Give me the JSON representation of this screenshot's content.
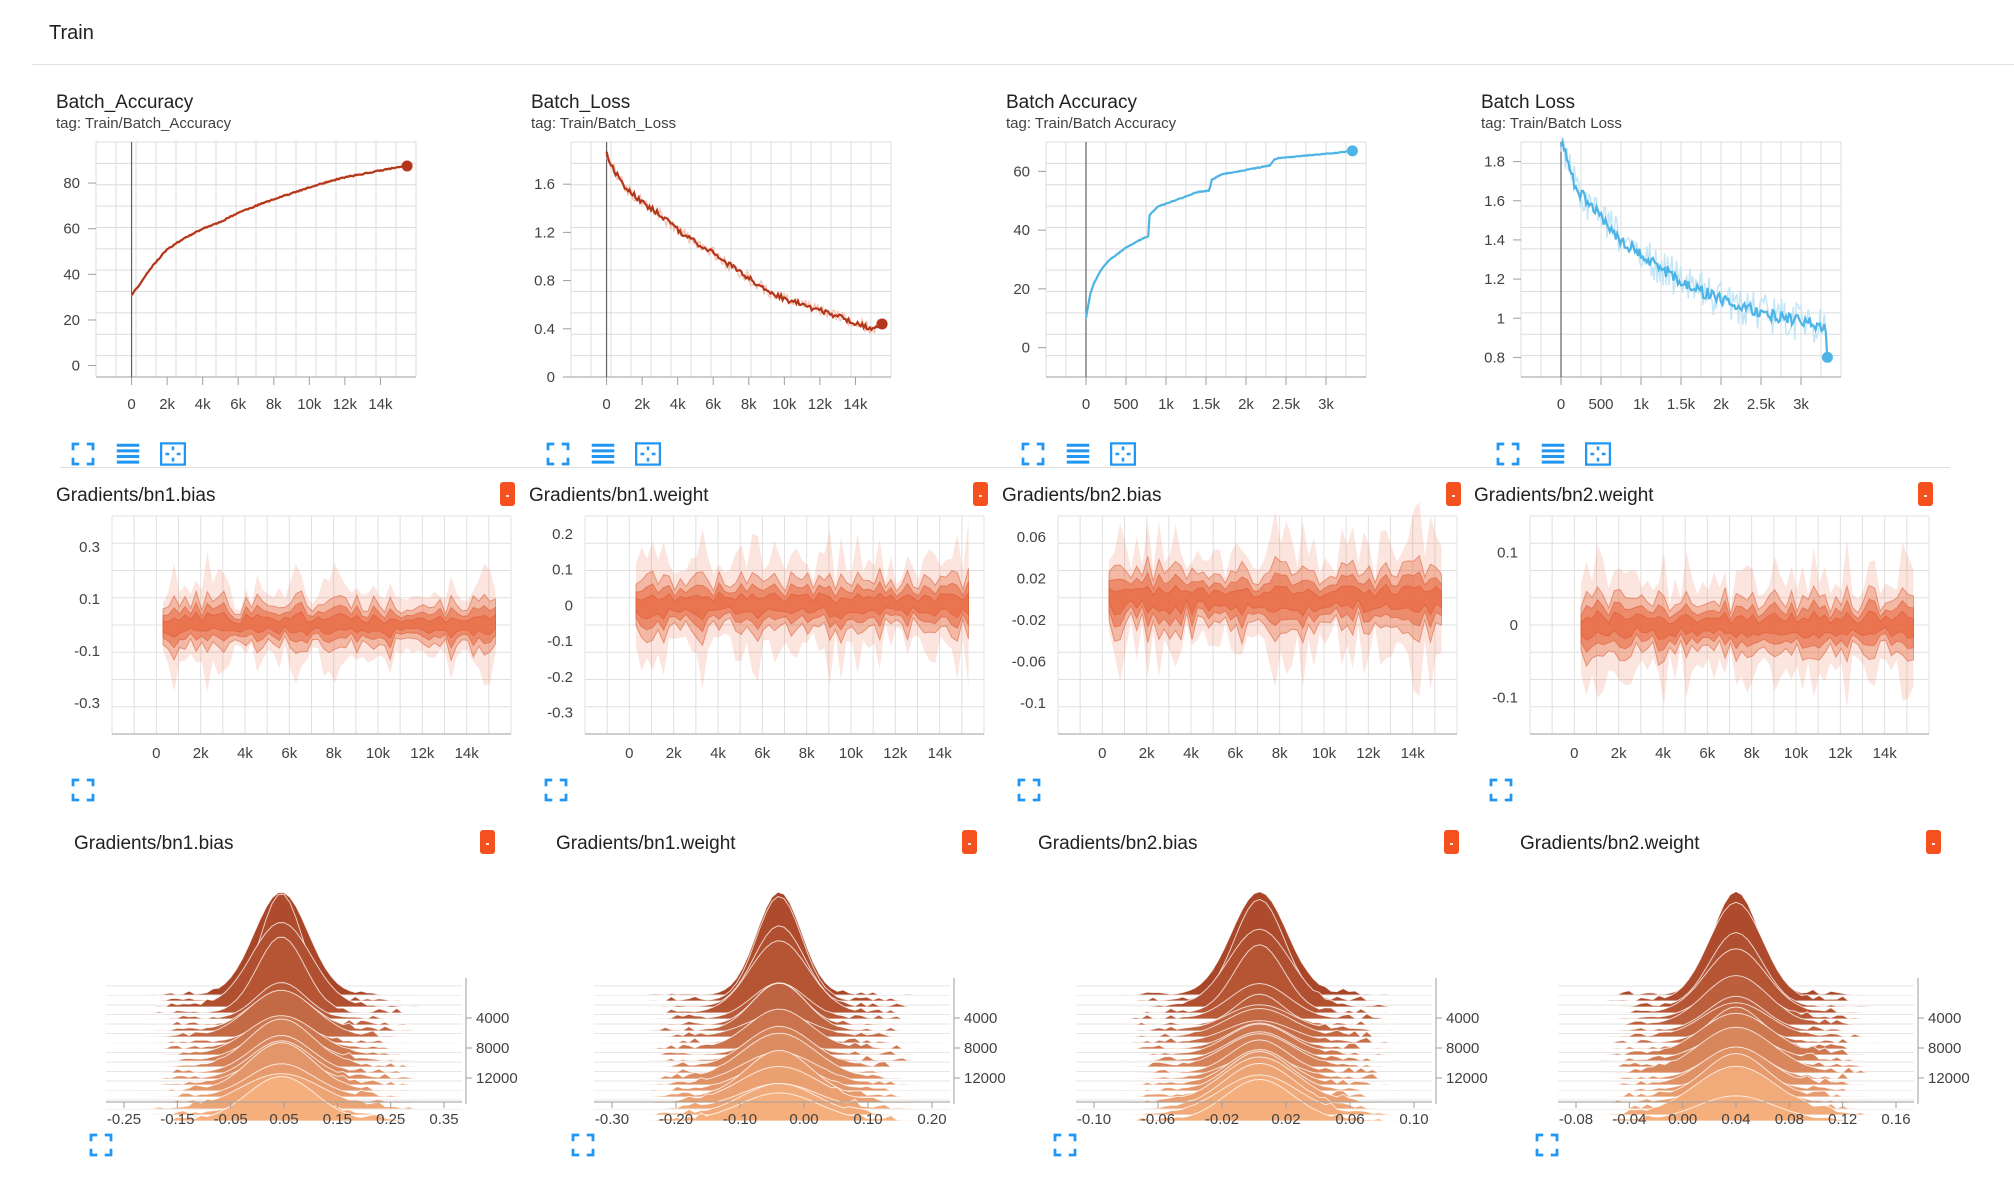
{
  "header": {
    "title": "Train"
  },
  "colors": {
    "red": "#b5371b",
    "red_light": "#f3c2b1",
    "blue": "#4db4e5",
    "blue_light": "#bfe3f5",
    "orange": "#e8704a",
    "icon_blue": "#2196f3"
  },
  "icons": {
    "expand": "fullscreen-icon",
    "legend": "list-icon",
    "fit": "fit-domain-icon",
    "badge": "colored-label-badge"
  },
  "scalars": [
    {
      "title": "Batch_Accuracy",
      "tag": "tag: Train/Batch_Accuracy",
      "chart_data": {
        "type": "line",
        "title": "Batch_Accuracy",
        "color": "red",
        "noise": 0.6,
        "xlim": [
          -2000,
          16000
        ],
        "ylim": [
          -5,
          98
        ],
        "x_ticks": [
          0,
          2000,
          4000,
          6000,
          8000,
          10000,
          12000,
          14000
        ],
        "x_tick_labels": [
          "0",
          "2k",
          "4k",
          "6k",
          "8k",
          "10k",
          "12k",
          "14k"
        ],
        "y_ticks": [
          0,
          20,
          40,
          60,
          80
        ],
        "y_tick_labels": [
          "0",
          "20",
          "40",
          "60",
          "80"
        ],
        "x": [
          0,
          500,
          1000,
          2000,
          3000,
          4000,
          5000,
          6000,
          7000,
          8000,
          9000,
          10000,
          11000,
          12000,
          13000,
          14000,
          15000,
          15500
        ],
        "y": [
          31,
          36,
          42,
          51,
          56,
          60,
          63,
          67,
          70,
          73,
          75.5,
          78,
          80.5,
          82.5,
          84,
          85.5,
          87,
          87.5
        ]
      }
    },
    {
      "title": "Batch_Loss",
      "tag": "tag: Train/Batch_Loss",
      "chart_data": {
        "type": "line",
        "title": "Batch_Loss",
        "color": "red",
        "noise": 0.05,
        "xlim": [
          -2000,
          16000
        ],
        "ylim": [
          0,
          1.95
        ],
        "x_ticks": [
          0,
          2000,
          4000,
          6000,
          8000,
          10000,
          12000,
          14000
        ],
        "x_tick_labels": [
          "0",
          "2k",
          "4k",
          "6k",
          "8k",
          "10k",
          "12k",
          "14k"
        ],
        "y_ticks": [
          0.4,
          0.8,
          1.2,
          1.6
        ],
        "y_tick_labels": [
          "0.4",
          "0.8",
          "1.2",
          "1.6"
        ],
        "extra_y_ticks": [
          {
            "value": 0.0,
            "label": "0"
          }
        ],
        "x": [
          0,
          500,
          1000,
          2000,
          3000,
          4000,
          5000,
          6000,
          7000,
          8000,
          9000,
          10000,
          11000,
          12000,
          13000,
          14000,
          15000,
          15500
        ],
        "y": [
          1.85,
          1.7,
          1.58,
          1.45,
          1.35,
          1.22,
          1.12,
          1.03,
          0.92,
          0.82,
          0.72,
          0.65,
          0.6,
          0.55,
          0.5,
          0.45,
          0.4,
          0.44
        ]
      }
    },
    {
      "title": "Batch Accuracy",
      "tag": "tag: Train/Batch Accuracy",
      "chart_data": {
        "type": "line",
        "title": "Batch Accuracy",
        "color": "blue",
        "noise": 0.25,
        "xlim": [
          -500,
          3500
        ],
        "ylim": [
          -10,
          70
        ],
        "x_ticks": [
          0,
          500,
          1000,
          1500,
          2000,
          2500,
          3000
        ],
        "x_tick_labels": [
          "0",
          "500",
          "1k",
          "1.5k",
          "2k",
          "2.5k",
          "3k"
        ],
        "y_ticks": [
          0,
          20,
          40,
          60
        ],
        "y_tick_labels": [
          "0",
          "20",
          "40",
          "60"
        ],
        "x": [
          0,
          50,
          100,
          200,
          300,
          400,
          500,
          600,
          700,
          780,
          790,
          900,
          1000,
          1200,
          1400,
          1550,
          1560,
          1700,
          1900,
          2100,
          2300,
          2350,
          2400,
          2600,
          2800,
          3000,
          3200,
          3330
        ],
        "y": [
          10,
          18,
          22,
          27,
          30,
          32,
          34,
          35.5,
          37,
          38,
          45,
          48,
          49,
          51,
          53,
          53.5,
          57,
          59,
          60,
          61,
          62,
          64,
          64.5,
          65,
          65.5,
          66,
          66.5,
          67
        ]
      }
    },
    {
      "title": "Batch Loss",
      "tag": "tag: Train/Batch Loss",
      "chart_data": {
        "type": "line",
        "title": "Batch Loss",
        "color": "blue",
        "noise": 0.07,
        "xlim": [
          -500,
          3500
        ],
        "ylim": [
          0.7,
          1.9
        ],
        "x_ticks": [
          0,
          500,
          1000,
          1500,
          2000,
          2500,
          3000
        ],
        "x_tick_labels": [
          "0",
          "500",
          "1k",
          "1.5k",
          "2k",
          "2.5k",
          "3k"
        ],
        "y_ticks": [
          0.8,
          1.0,
          1.2,
          1.4,
          1.6,
          1.8
        ],
        "y_tick_labels": [
          "0.8",
          "1",
          "1.2",
          "1.4",
          "1.6",
          "1.8"
        ],
        "x": [
          0,
          100,
          200,
          400,
          600,
          800,
          1000,
          1200,
          1400,
          1600,
          1800,
          2000,
          2200,
          2400,
          2600,
          2800,
          3000,
          3200,
          3300,
          3330
        ],
        "y": [
          1.9,
          1.78,
          1.65,
          1.57,
          1.47,
          1.38,
          1.33,
          1.27,
          1.22,
          1.17,
          1.13,
          1.1,
          1.07,
          1.04,
          1.02,
          1.0,
          0.98,
          0.97,
          0.95,
          0.8
        ]
      }
    }
  ],
  "distributions": [
    {
      "title": "Gradients/bn1.bias",
      "chart_data": {
        "type": "area",
        "title": "Gradients/bn1.bias",
        "xlim": [
          -2000,
          16000
        ],
        "ylim": [
          -0.42,
          0.42
        ],
        "base": 0.0,
        "spread": 0.12,
        "x_ticks": [
          0,
          2000,
          4000,
          6000,
          8000,
          10000,
          12000,
          14000
        ],
        "x_tick_labels": [
          "0",
          "2k",
          "4k",
          "6k",
          "8k",
          "10k",
          "12k",
          "14k"
        ],
        "y_ticks": [
          -0.3,
          -0.1,
          0.1,
          0.3
        ],
        "y_tick_labels": [
          "-0.3",
          "-0.1",
          "0.1",
          "0.3"
        ]
      }
    },
    {
      "title": "Gradients/bn1.weight",
      "chart_data": {
        "type": "area",
        "title": "Gradients/bn1.weight",
        "xlim": [
          -2000,
          16000
        ],
        "ylim": [
          -0.36,
          0.25
        ],
        "base": 0.0,
        "spread": 0.1,
        "x_ticks": [
          0,
          2000,
          4000,
          6000,
          8000,
          10000,
          12000,
          14000
        ],
        "x_tick_labels": [
          "0",
          "2k",
          "4k",
          "6k",
          "8k",
          "10k",
          "12k",
          "14k"
        ],
        "y_ticks": [
          -0.3,
          -0.2,
          -0.1,
          0,
          0.1,
          0.2
        ],
        "y_tick_labels": [
          "-0.3",
          "-0.2",
          "-0.1",
          "0",
          "0.1",
          "0.2"
        ]
      }
    },
    {
      "title": "Gradients/bn2.bias",
      "chart_data": {
        "type": "area",
        "title": "Gradients/bn2.bias",
        "xlim": [
          -2000,
          16000
        ],
        "ylim": [
          -0.13,
          0.08
        ],
        "base": 0.0,
        "spread": 0.04,
        "x_ticks": [
          0,
          2000,
          4000,
          6000,
          8000,
          10000,
          12000,
          14000
        ],
        "x_tick_labels": [
          "0",
          "2k",
          "4k",
          "6k",
          "8k",
          "10k",
          "12k",
          "14k"
        ],
        "y_ticks": [
          -0.1,
          -0.06,
          -0.02,
          0.02,
          0.06
        ],
        "y_tick_labels": [
          "-0.1",
          "-0.06",
          "-0.02",
          "0.02",
          "0.06"
        ]
      }
    },
    {
      "title": "Gradients/bn2.weight",
      "chart_data": {
        "type": "area",
        "title": "Gradients/bn2.weight",
        "xlim": [
          -2000,
          16000
        ],
        "ylim": [
          -0.15,
          0.15
        ],
        "base": 0.0,
        "spread": 0.05,
        "x_ticks": [
          0,
          2000,
          4000,
          6000,
          8000,
          10000,
          12000,
          14000
        ],
        "x_tick_labels": [
          "0",
          "2k",
          "4k",
          "6k",
          "8k",
          "10k",
          "12k",
          "14k"
        ],
        "y_ticks": [
          -0.1,
          0,
          0.1
        ],
        "y_tick_labels": [
          "-0.1",
          "0",
          "0.1"
        ]
      }
    }
  ],
  "histograms": [
    {
      "title": "Gradients/bn1.bias",
      "chart_data": {
        "type": "area",
        "title": "Gradients/bn1.bias",
        "x_tick_labels": [
          "-0.25",
          "-0.15",
          "-0.05",
          "0.05",
          "0.15",
          "0.25",
          "0.35"
        ],
        "y_tick_labels": [
          "4000",
          "8000",
          "12000"
        ],
        "peak": 0.47
      }
    },
    {
      "title": "Gradients/bn1.weight",
      "chart_data": {
        "type": "area",
        "title": "Gradients/bn1.weight",
        "x_tick_labels": [
          "-0.30",
          "-0.20",
          "-0.10",
          "0.00",
          "0.10",
          "0.20"
        ],
        "y_tick_labels": [
          "4000",
          "8000",
          "12000"
        ],
        "peak": 0.58
      }
    },
    {
      "title": "Gradients/bn2.bias",
      "chart_data": {
        "type": "area",
        "title": "Gradients/bn2.bias",
        "x_tick_labels": [
          "-0.10",
          "-0.06",
          "-0.02",
          "0.02",
          "0.06",
          "0.10"
        ],
        "y_tick_labels": [
          "4000",
          "8000",
          "12000"
        ],
        "peak": 0.56
      }
    },
    {
      "title": "Gradients/bn2.weight",
      "chart_data": {
        "type": "area",
        "title": "Gradients/bn2.weight",
        "x_tick_labels": [
          "-0.08",
          "-0.04",
          "0.00",
          "0.04",
          "0.08",
          "0.12",
          "0.16"
        ],
        "y_tick_labels": [
          "4000",
          "8000",
          "12000"
        ],
        "peak": 0.5
      }
    }
  ]
}
